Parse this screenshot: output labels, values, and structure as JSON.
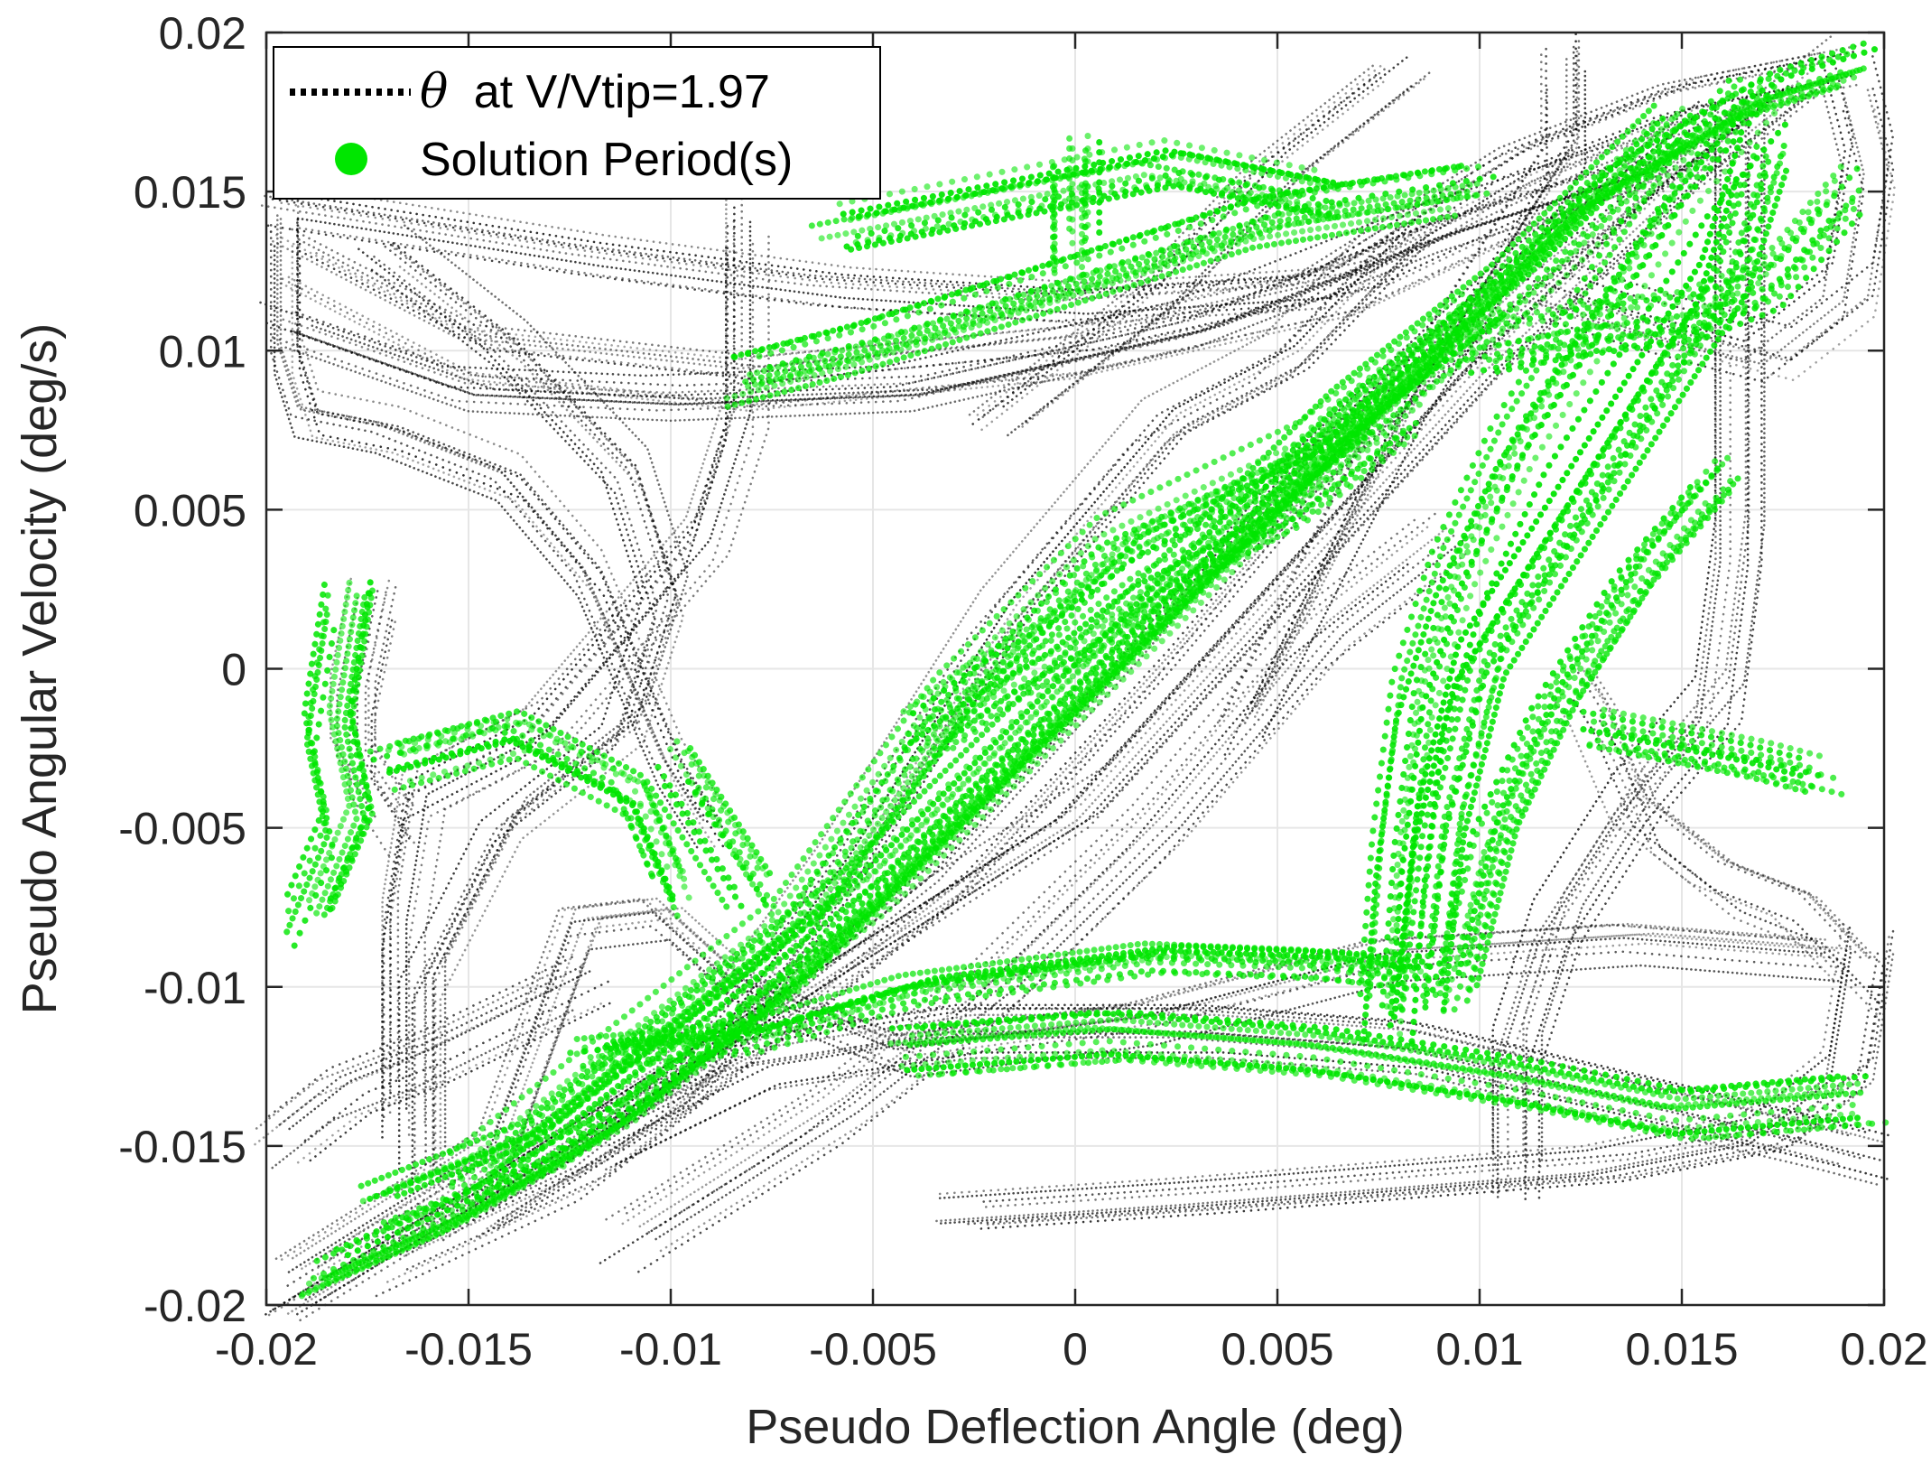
{
  "chart_data": {
    "type": "scatter",
    "title": "",
    "xlabel": "Pseudo Deflection Angle (deg)",
    "ylabel": "Pseudo Angular Velocity (deg/s)",
    "xlim": [
      -0.02,
      0.02
    ],
    "ylim": [
      -0.02,
      0.02
    ],
    "x_ticks": [
      "-0.02",
      "-0.015",
      "-0.01",
      "-0.005",
      "0",
      "0.005",
      "0.01",
      "0.015",
      "0.02"
    ],
    "y_ticks": [
      "-0.02",
      "-0.015",
      "-0.01",
      "-0.005",
      "0",
      "0.005",
      "0.01",
      "0.015",
      "0.02"
    ],
    "grid": true,
    "legend": {
      "placement": "top-left",
      "entries": [
        {
          "symbol": "θ",
          "text": "at V/Vtip=1.97",
          "style": "dotted-line",
          "color": "#000000"
        },
        {
          "symbol": "",
          "text": "Solution Period(s)",
          "style": "filled-circle",
          "color": "#00e600"
        }
      ]
    },
    "series": [
      {
        "style": "dotted-line",
        "color": "#000000",
        "paths": [
          [
            [
              -0.0195,
              0.0145
            ],
            [
              -0.017,
              0.014
            ],
            [
              -0.012,
              0.013
            ],
            [
              -0.006,
              0.012
            ],
            [
              0.0,
              0.0115
            ],
            [
              0.006,
              0.012
            ],
            [
              0.011,
              0.016
            ],
            [
              0.015,
              0.018
            ],
            [
              0.019,
              0.019
            ]
          ],
          [
            [
              -0.0195,
              0.013
            ],
            [
              -0.015,
              0.01
            ],
            [
              -0.008,
              0.009
            ],
            [
              0.0,
              0.01
            ],
            [
              0.007,
              0.012
            ],
            [
              0.012,
              0.015
            ],
            [
              0.016,
              0.017
            ]
          ],
          [
            [
              -0.0195,
              0.011
            ],
            [
              -0.015,
              0.009
            ],
            [
              -0.01,
              0.0087
            ],
            [
              -0.004,
              0.009
            ],
            [
              0.003,
              0.011
            ],
            [
              0.009,
              0.014
            ],
            [
              0.014,
              0.016
            ]
          ],
          [
            [
              -0.0195,
              0.014
            ],
            [
              -0.0195,
              0.01
            ],
            [
              -0.019,
              0.008
            ],
            [
              -0.017,
              0.0075
            ],
            [
              -0.014,
              0.006
            ],
            [
              -0.012,
              0.003
            ],
            [
              -0.011,
              0.0
            ],
            [
              -0.01,
              -0.003
            ],
            [
              -0.009,
              -0.005
            ]
          ],
          [
            [
              -0.008,
              0.014
            ],
            [
              -0.008,
              0.008
            ],
            [
              -0.009,
              0.004
            ],
            [
              -0.011,
              0.001
            ],
            [
              -0.013,
              -0.002
            ],
            [
              -0.016,
              -0.004
            ],
            [
              -0.0165,
              -0.008
            ],
            [
              -0.0165,
              -0.014
            ]
          ],
          [
            [
              -0.017,
              0.013
            ],
            [
              -0.014,
              0.01
            ],
            [
              -0.011,
              0.006
            ],
            [
              -0.01,
              0.002
            ],
            [
              -0.011,
              -0.002
            ],
            [
              -0.014,
              -0.005
            ],
            [
              -0.016,
              -0.01
            ],
            [
              -0.016,
              -0.016
            ]
          ],
          [
            [
              -0.0195,
              -0.0195
            ],
            [
              -0.015,
              -0.016
            ],
            [
              -0.01,
              -0.012
            ],
            [
              -0.005,
              -0.008
            ],
            [
              0.0,
              -0.004
            ],
            [
              0.005,
              0.003
            ],
            [
              0.01,
              0.01
            ],
            [
              0.015,
              0.016
            ],
            [
              0.018,
              0.019
            ]
          ],
          [
            [
              -0.017,
              -0.019
            ],
            [
              -0.012,
              -0.016
            ],
            [
              -0.008,
              -0.012
            ],
            [
              -0.003,
              -0.007
            ],
            [
              0.002,
              0.0
            ],
            [
              0.006,
              0.006
            ],
            [
              0.011,
              0.012
            ],
            [
              0.016,
              0.017
            ]
          ],
          [
            [
              -0.015,
              -0.017
            ],
            [
              -0.01,
              -0.013
            ],
            [
              -0.006,
              -0.006
            ],
            [
              -0.002,
              0.002
            ],
            [
              0.002,
              0.008
            ],
            [
              0.005,
              0.01
            ],
            [
              0.008,
              0.014
            ]
          ],
          [
            [
              -0.011,
              -0.018
            ],
            [
              -0.006,
              -0.014
            ],
            [
              -0.002,
              -0.01
            ],
            [
              0.002,
              -0.005
            ],
            [
              0.006,
              0.001
            ],
            [
              0.009,
              0.004
            ]
          ],
          [
            [
              -0.019,
              -0.019
            ],
            [
              -0.014,
              -0.015
            ],
            [
              -0.012,
              -0.008
            ],
            [
              -0.01,
              -0.0077
            ],
            [
              -0.008,
              -0.01
            ],
            [
              -0.004,
              -0.012
            ],
            [
              0.002,
              -0.011
            ],
            [
              0.008,
              -0.009
            ],
            [
              0.014,
              -0.0085
            ],
            [
              0.019,
              -0.009
            ]
          ],
          [
            [
              -0.012,
              -0.015
            ],
            [
              -0.008,
              -0.0125
            ],
            [
              -0.003,
              -0.0115
            ],
            [
              0.003,
              -0.0115
            ],
            [
              0.008,
              -0.012
            ],
            [
              0.013,
              -0.0135
            ],
            [
              0.018,
              -0.015
            ],
            [
              0.0195,
              -0.0155
            ]
          ],
          [
            [
              0.0195,
              -0.009
            ],
            [
              0.019,
              -0.013
            ],
            [
              0.017,
              -0.015
            ],
            [
              0.013,
              -0.016
            ],
            [
              0.008,
              -0.0165
            ],
            [
              0.003,
              -0.017
            ],
            [
              -0.003,
              -0.0175
            ]
          ],
          [
            [
              0.0195,
              -0.01
            ],
            [
              0.018,
              -0.008
            ],
            [
              0.016,
              -0.007
            ],
            [
              0.014,
              -0.005
            ],
            [
              0.013,
              -0.002
            ],
            [
              0.0125,
              -0.001
            ]
          ],
          [
            [
              0.0165,
              0.017
            ],
            [
              0.0165,
              0.012
            ],
            [
              0.0165,
              0.004
            ],
            [
              0.016,
              -0.001
            ],
            [
              0.014,
              -0.004
            ],
            [
              0.012,
              -0.008
            ],
            [
              0.011,
              -0.012
            ],
            [
              0.011,
              -0.016
            ]
          ],
          [
            [
              0.012,
              0.019
            ],
            [
              0.012,
              0.016
            ],
            [
              0.011,
              0.014
            ],
            [
              0.008,
              0.008
            ],
            [
              0.006,
              0.003
            ],
            [
              0.004,
              -0.002
            ]
          ],
          [
            [
              0.019,
              0.0185
            ],
            [
              0.0195,
              0.016
            ],
            [
              0.019,
              0.012
            ],
            [
              0.017,
              0.01
            ],
            [
              0.014,
              0.011
            ],
            [
              0.0115,
              0.012
            ]
          ],
          [
            [
              0.008,
              0.019
            ],
            [
              0.005,
              0.016
            ],
            [
              0.002,
              0.012
            ],
            [
              0.0,
              0.01
            ],
            [
              -0.002,
              0.008
            ]
          ],
          [
            [
              -0.0175,
              0.002
            ],
            [
              -0.018,
              -0.001
            ],
            [
              -0.018,
              -0.003
            ],
            [
              -0.017,
              -0.005
            ]
          ],
          [
            [
              -0.0195,
              -0.015
            ],
            [
              -0.018,
              -0.0135
            ],
            [
              -0.016,
              -0.0125
            ],
            [
              -0.012,
              -0.01
            ]
          ]
        ]
      },
      {
        "name": "Solution Period(s)",
        "style": "filled-circle",
        "color": "#00e600",
        "paths": [
          [
            [
              -0.0185,
              -0.019
            ],
            [
              -0.015,
              -0.017
            ],
            [
              -0.011,
              -0.014
            ],
            [
              -0.007,
              -0.01
            ],
            [
              -0.003,
              -0.005
            ],
            [
              0.001,
              0.0
            ],
            [
              0.005,
              0.005
            ],
            [
              0.009,
              0.01
            ],
            [
              0.013,
              0.015
            ],
            [
              0.017,
              0.018
            ],
            [
              0.0195,
              0.019
            ]
          ],
          [
            [
              -0.017,
              -0.017
            ],
            [
              -0.013,
              -0.015
            ],
            [
              -0.009,
              -0.011
            ],
            [
              -0.005,
              -0.007
            ],
            [
              -0.001,
              -0.002
            ],
            [
              0.003,
              0.003
            ],
            [
              0.007,
              0.008
            ],
            [
              0.011,
              0.012
            ],
            [
              0.015,
              0.017
            ]
          ],
          [
            [
              -0.015,
              -0.016
            ],
            [
              -0.011,
              -0.012
            ],
            [
              -0.007,
              -0.008
            ],
            [
              -0.003,
              -0.001
            ],
            [
              0.001,
              0.004
            ],
            [
              0.006,
              0.007
            ],
            [
              0.01,
              0.011
            ]
          ],
          [
            [
              -0.0036,
              -0.002
            ],
            [
              -0.002,
              -0.0005
            ],
            [
              0.0,
              0.001
            ],
            [
              0.002,
              0.003
            ],
            [
              0.005,
              0.005
            ],
            [
              0.008,
              0.008
            ]
          ],
          [
            [
              0.0077,
              -0.011
            ],
            [
              0.008,
              -0.006
            ],
            [
              0.0085,
              -0.001
            ],
            [
              0.0095,
              0.003
            ],
            [
              0.011,
              0.007
            ],
            [
              0.013,
              0.011
            ],
            [
              0.015,
              0.015
            ],
            [
              0.017,
              0.018
            ]
          ],
          [
            [
              0.0085,
              -0.0105
            ],
            [
              0.009,
              -0.005
            ],
            [
              0.01,
              0.0
            ],
            [
              0.012,
              0.004
            ],
            [
              0.014,
              0.008
            ],
            [
              0.016,
              0.012
            ],
            [
              0.017,
              0.016
            ]
          ],
          [
            [
              0.0095,
              -0.01
            ],
            [
              0.0105,
              -0.005
            ],
            [
              0.012,
              -0.001
            ],
            [
              0.014,
              0.003
            ],
            [
              0.016,
              0.006
            ]
          ],
          [
            [
              0.008,
              -0.0095
            ],
            [
              0.006,
              -0.0092
            ],
            [
              0.002,
              -0.009
            ],
            [
              -0.004,
              -0.01
            ],
            [
              -0.008,
              -0.0115
            ],
            [
              -0.012,
              -0.012
            ]
          ],
          [
            [
              -0.004,
              -0.012
            ],
            [
              0.001,
              -0.0115
            ],
            [
              0.006,
              -0.012
            ],
            [
              0.011,
              -0.013
            ],
            [
              0.015,
              -0.014
            ],
            [
              0.0195,
              -0.0135
            ]
          ],
          [
            [
              0.013,
              -0.002
            ],
            [
              0.015,
              -0.0025
            ],
            [
              0.017,
              -0.003
            ],
            [
              0.0185,
              -0.0035
            ]
          ],
          [
            [
              -0.018,
              0.002
            ],
            [
              -0.0185,
              -0.002
            ],
            [
              -0.018,
              -0.005
            ],
            [
              -0.019,
              -0.008
            ]
          ],
          [
            [
              -0.017,
              -0.003
            ],
            [
              -0.014,
              -0.002
            ],
            [
              -0.011,
              -0.004
            ],
            [
              -0.01,
              -0.007
            ]
          ],
          [
            [
              -0.008,
              -0.007
            ],
            [
              -0.009,
              -0.005
            ],
            [
              -0.01,
              -0.003
            ]
          ],
          [
            [
              -0.008,
              0.009
            ],
            [
              -0.005,
              0.01
            ],
            [
              0.0,
              0.012
            ],
            [
              0.005,
              0.014
            ],
            [
              0.01,
              0.015
            ]
          ],
          [
            [
              -0.006,
              0.014
            ],
            [
              -0.002,
              0.015
            ],
            [
              0.002,
              0.016
            ],
            [
              0.006,
              0.015
            ]
          ],
          [
            [
              0.0,
              0.016
            ],
            [
              0.0,
              0.014
            ],
            [
              0.0,
              0.013
            ]
          ],
          [
            [
              0.01,
              0.01
            ],
            [
              0.012,
              0.0105
            ],
            [
              0.015,
              0.011
            ],
            [
              0.017,
              0.012
            ],
            [
              0.019,
              0.015
            ]
          ]
        ]
      }
    ]
  }
}
